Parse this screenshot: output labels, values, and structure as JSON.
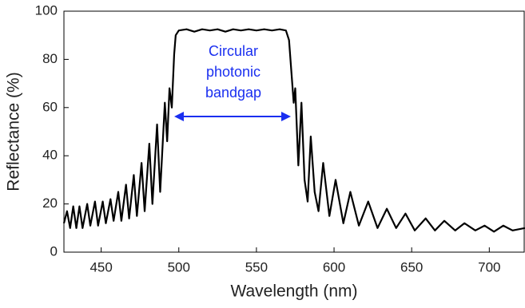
{
  "chart_data": {
    "type": "line",
    "x_label": "Wavelength (nm)",
    "y_label": "Reflectance (%)",
    "annotation": [
      "Circular",
      "photonic",
      "bandgap"
    ],
    "xlim": [
      426,
      723
    ],
    "ylim": [
      0,
      100
    ],
    "xticks": [
      450,
      500,
      550,
      600,
      650,
      700
    ],
    "yticks": [
      0,
      20,
      40,
      60,
      80,
      100
    ],
    "grid": false,
    "series": [
      {
        "color": "#000000",
        "x": [
          426,
          428,
          430,
          432,
          434,
          436,
          438,
          441,
          443,
          446,
          448,
          451,
          453,
          456,
          458,
          461,
          463,
          466,
          468,
          471,
          473,
          476,
          478,
          481,
          483,
          486,
          488,
          491,
          492.5,
          494,
          495.5,
          497,
          498,
          500,
          505,
          510,
          515,
          520,
          525,
          530,
          535,
          540,
          545,
          550,
          555,
          560,
          565,
          569,
          571,
          572.5,
          574,
          575,
          577,
          579,
          581,
          583,
          585,
          587.5,
          590,
          593,
          597,
          601,
          606,
          610.5,
          616,
          622,
          628,
          634,
          640,
          646,
          652,
          659,
          665,
          671,
          678,
          684,
          691,
          697,
          703,
          709,
          715,
          723
        ],
        "values": [
          12,
          17,
          10,
          19,
          10,
          19,
          10,
          20,
          11,
          21,
          11,
          21,
          12,
          22,
          13,
          25,
          13,
          28,
          14,
          32,
          15,
          37,
          17,
          45,
          20,
          53,
          25,
          62,
          46,
          68,
          60,
          82,
          90,
          92,
          92.5,
          91.5,
          92.5,
          92,
          92.5,
          91.5,
          92.5,
          92,
          92.5,
          92,
          92.5,
          92,
          92.5,
          92,
          88,
          75,
          62,
          68,
          36,
          62,
          30,
          21,
          48,
          25,
          17,
          37,
          15,
          30,
          12,
          25,
          11,
          21,
          10,
          18,
          10,
          16,
          9,
          14,
          9,
          13,
          9,
          12,
          9,
          11,
          8.5,
          11,
          9,
          10
        ]
      }
    ]
  }
}
